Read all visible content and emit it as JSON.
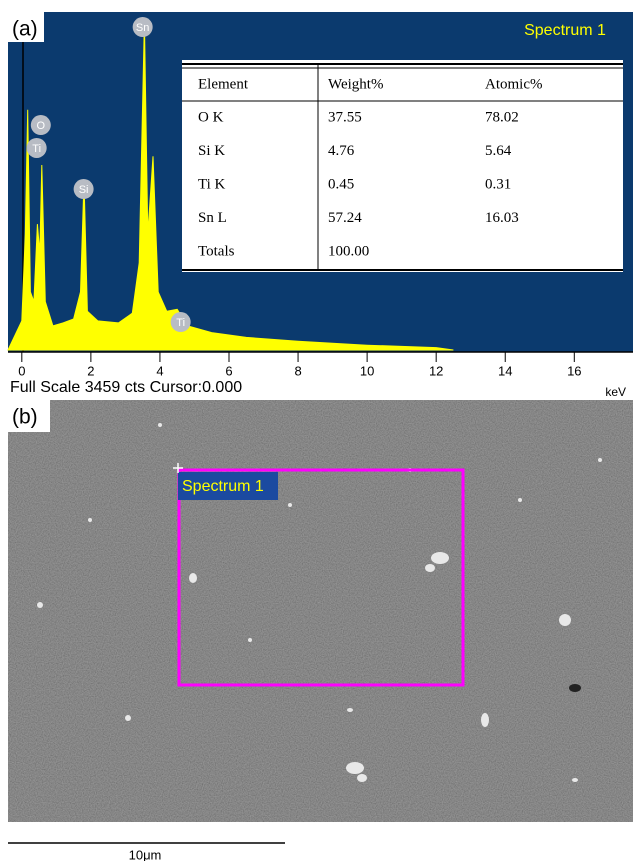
{
  "panel_a": {
    "label": "(a)",
    "chart_data": {
      "type": "area",
      "title": "Spectrum 1",
      "color": "#ffff00",
      "background": "#0b3a6e",
      "x": [
        -0.4,
        0,
        0.1,
        0.17,
        0.25,
        0.35,
        0.45,
        0.52,
        0.58,
        0.68,
        0.9,
        1.2,
        1.5,
        1.7,
        1.8,
        1.9,
        2.2,
        2.8,
        3.2,
        3.4,
        3.55,
        3.65,
        3.8,
        3.95,
        4.2,
        4.5,
        4.8,
        5.5,
        6.5,
        8,
        10,
        12,
        12.5
      ],
      "values": [
        0,
        300,
        1200,
        2480,
        600,
        500,
        1300,
        1000,
        1910,
        500,
        250,
        280,
        320,
        600,
        1750,
        400,
        300,
        280,
        380,
        900,
        3400,
        1200,
        2000,
        600,
        400,
        420,
        250,
        180,
        130,
        90,
        50,
        25,
        0
      ],
      "xlim": [
        -0.4,
        17.7
      ],
      "xticks": [
        0,
        2,
        4,
        6,
        8,
        10,
        12,
        14,
        16
      ],
      "ylim": [
        0,
        3459
      ],
      "xlabel": "keV",
      "status": "Full Scale 3459 cts Cursor:0.000",
      "annotations": [
        {
          "text": "Sn",
          "x": 3.5,
          "y": 3335
        },
        {
          "text": "O",
          "x": 0.55,
          "y": 2323
        },
        {
          "text": "Ti",
          "x": 0.43,
          "y": 2086
        },
        {
          "text": "Si",
          "x": 1.79,
          "y": 1662
        },
        {
          "text": "Ti",
          "x": 4.6,
          "y": 289
        }
      ]
    },
    "table": {
      "columns": [
        "Element",
        "Weight%",
        "Atomic%"
      ],
      "rows": [
        [
          "O K",
          "37.55",
          "78.02"
        ],
        [
          "Si K",
          "4.76",
          "5.64"
        ],
        [
          "Ti K",
          "0.45",
          "0.31"
        ],
        [
          "Sn L",
          "57.24",
          "16.03"
        ],
        [
          "Totals",
          "100.00"
        ]
      ]
    }
  },
  "panel_b": {
    "label": "(b)",
    "region_label": "Spectrum 1",
    "scale_bar": "10μm"
  }
}
